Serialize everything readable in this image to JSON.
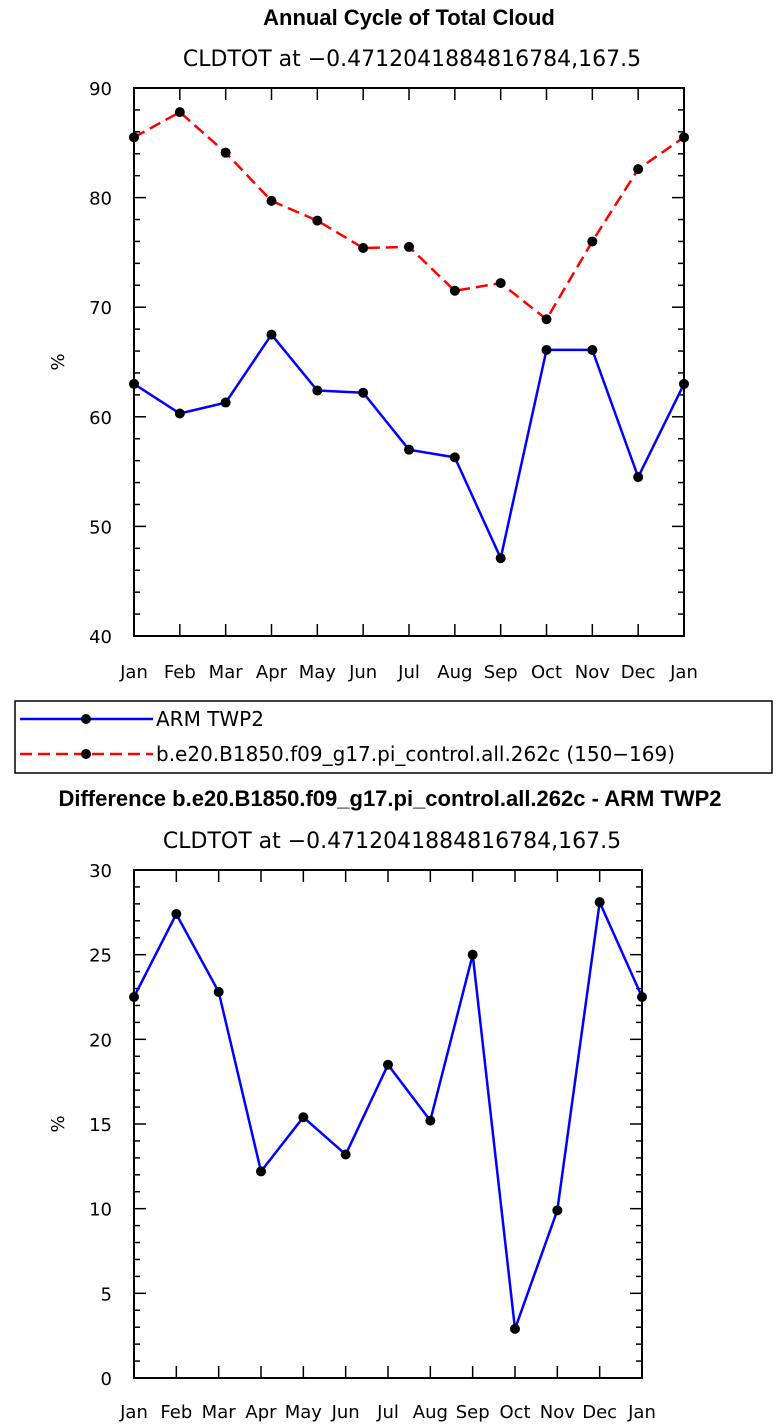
{
  "chart_data": [
    {
      "type": "line",
      "title": "Annual Cycle of Total Cloud",
      "subtitle": "CLDTOT at −0.4712041884816784,167.5",
      "ylabel": "%",
      "xlabel": "",
      "ylim": [
        40,
        90
      ],
      "yticks": [
        40,
        50,
        60,
        70,
        80,
        90
      ],
      "categories": [
        "Jan",
        "Feb",
        "Mar",
        "Apr",
        "May",
        "Jun",
        "Jul",
        "Aug",
        "Sep",
        "Oct",
        "Nov",
        "Dec",
        "Jan"
      ],
      "series": [
        {
          "name": "ARM TWP2",
          "color": "#0000ff",
          "dash": "solid",
          "values": [
            63.0,
            60.3,
            61.3,
            67.5,
            62.4,
            62.2,
            57.0,
            56.3,
            47.1,
            66.1,
            66.1,
            54.5,
            63.0
          ]
        },
        {
          "name": "b.e20.B1850.f09_g17.pi_control.all.262c (150−169)",
          "color": "#ff0000",
          "dash": "dashed",
          "values": [
            85.5,
            87.8,
            84.1,
            79.7,
            77.9,
            75.4,
            75.5,
            71.5,
            72.2,
            68.9,
            76.0,
            82.6,
            85.5
          ]
        }
      ]
    },
    {
      "type": "line",
      "title": "Difference b.e20.B1850.f09_g17.pi_control.all.262c - ARM TWP2",
      "subtitle": "CLDTOT at −0.4712041884816784,167.5",
      "ylabel": "%",
      "xlabel": "",
      "ylim": [
        0,
        30
      ],
      "yticks": [
        0,
        5,
        10,
        15,
        20,
        25,
        30
      ],
      "categories": [
        "Jan",
        "Feb",
        "Mar",
        "Apr",
        "May",
        "Jun",
        "Jul",
        "Aug",
        "Sep",
        "Oct",
        "Nov",
        "Dec",
        "Jan"
      ],
      "series": [
        {
          "color": "#0000ff",
          "dash": "solid",
          "values": [
            22.5,
            27.4,
            22.8,
            12.2,
            15.4,
            13.2,
            18.5,
            15.2,
            25.0,
            2.9,
            9.9,
            28.1,
            22.5
          ]
        }
      ]
    }
  ]
}
